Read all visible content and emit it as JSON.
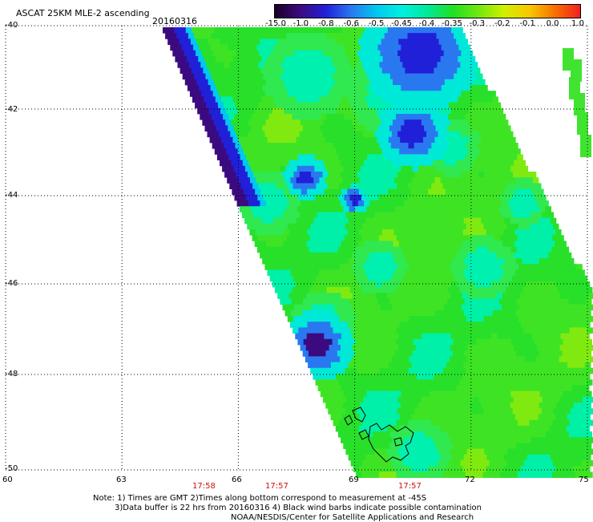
{
  "header": {
    "title": "ASCAT 25KM MLE-2 ascending",
    "date": "20160316"
  },
  "colorbar": {
    "labels": [
      "-15.0",
      "-1.0",
      "-0.8",
      "-0.6",
      "-0.5",
      "-0.45",
      "-0.4",
      "-0.35",
      "-0.3",
      "-0.2",
      "-0.1",
      "0.0",
      "1.0"
    ],
    "colors": [
      "#1a0026",
      "#3c0a80",
      "#2020d8",
      "#2a78f0",
      "#00c8f0",
      "#00f0e0",
      "#00e89a",
      "#20e020",
      "#70e810",
      "#d0f000",
      "#f8c800",
      "#f87000",
      "#f02020"
    ]
  },
  "map": {
    "lon_labels": [
      "60",
      "63",
      "66",
      "69",
      "72",
      "75"
    ],
    "lat_labels": [
      "-40",
      "-42",
      "-44",
      "-46",
      "-48",
      "-50"
    ],
    "time_labels": [
      "17:58",
      "17:57",
      "17:57"
    ]
  },
  "chart_data": {
    "type": "heatmap",
    "title": "ASCAT 25KM MLE-2 ascending",
    "date": "20160316",
    "lon_range": [
      60,
      75
    ],
    "lat_range": [
      -50,
      -40
    ],
    "grid": true,
    "colorbar_values": [
      "-15.0",
      "-1.0",
      "-0.8",
      "-0.6",
      "-0.5",
      "-0.45",
      "-0.4",
      "-0.35",
      "-0.3",
      "-0.2",
      "-0.1",
      "0.0",
      "1.0"
    ],
    "dominant_value_range": [
      -0.4,
      -0.35
    ]
  },
  "notes": {
    "line1": "Note: 1) Times are GMT 2)Times along bottom correspond to measurement at -45S",
    "line2": "3)Data buffer is 22 hrs from 20160316 4) Black wind barbs indicate possible contamination",
    "line3": "NOAA/NESDIS/Center for Satellite Applications and Research"
  }
}
